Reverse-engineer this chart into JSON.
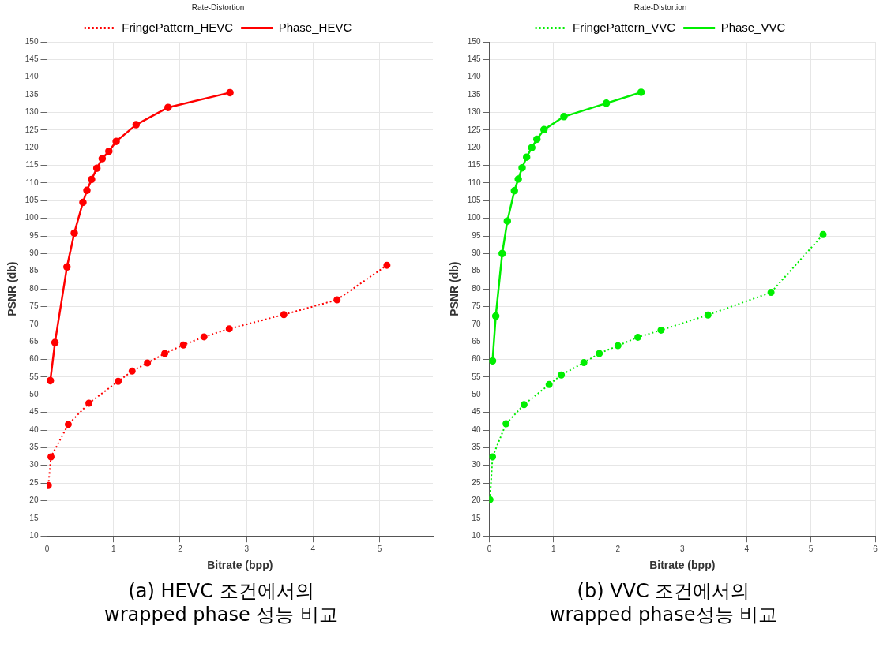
{
  "chart_data": [
    {
      "type": "line",
      "title": "Rate-Distortion",
      "xlabel": "Bitrate (bpp)",
      "ylabel": "PSNR (db)",
      "xlim": [
        0,
        5.8
      ],
      "xticks": [
        0,
        1,
        2,
        3,
        4,
        5
      ],
      "ylim": [
        10,
        150
      ],
      "yticks": [
        10,
        15,
        20,
        25,
        30,
        35,
        40,
        45,
        50,
        55,
        60,
        65,
        70,
        75,
        80,
        85,
        90,
        95,
        100,
        105,
        110,
        115,
        120,
        125,
        130,
        135,
        140,
        145,
        150
      ],
      "grid": true,
      "legend": "top",
      "marker": "circle",
      "series": [
        {
          "name": "FringePattern_HEVC",
          "color": "#ff0000",
          "line_style": "dotted",
          "x": [
            0.02,
            0.06,
            0.32,
            0.63,
            1.07,
            1.28,
            1.51,
            1.77,
            2.05,
            2.36,
            2.74,
            3.56,
            4.36,
            5.11
          ],
          "values": [
            24.3,
            32.4,
            41.6,
            47.6,
            53.8,
            56.7,
            59.0,
            61.7,
            64.1,
            66.4,
            68.7,
            72.7,
            76.9,
            86.7
          ]
        },
        {
          "name": "Phase_HEVC",
          "color": "#ff0000",
          "line_style": "solid",
          "x": [
            0.05,
            0.12,
            0.3,
            0.41,
            0.54,
            0.6,
            0.67,
            0.75,
            0.83,
            0.93,
            1.04,
            1.34,
            1.82,
            2.75
          ],
          "values": [
            54.0,
            64.8,
            86.2,
            95.8,
            104.5,
            107.9,
            111.0,
            114.2,
            116.9,
            119.0,
            121.8,
            126.5,
            131.4,
            135.6
          ]
        }
      ],
      "annotations": [
        "(a)  HEVC 조건에서의\nwrapped phase 성능 비교"
      ]
    },
    {
      "type": "line",
      "title": "Rate-Distortion",
      "xlabel": "Bitrate (bpp)",
      "ylabel": "PSNR (db)",
      "xlim": [
        0,
        6
      ],
      "xticks": [
        0,
        1,
        2,
        3,
        4,
        5,
        6
      ],
      "ylim": [
        10,
        150
      ],
      "yticks": [
        10,
        15,
        20,
        25,
        30,
        35,
        40,
        45,
        50,
        55,
        60,
        65,
        70,
        75,
        80,
        85,
        90,
        95,
        100,
        105,
        110,
        115,
        120,
        125,
        130,
        135,
        140,
        145,
        150
      ],
      "grid": true,
      "legend": "top",
      "marker": "circle",
      "series": [
        {
          "name": "FringePattern_VVC",
          "color": "#00ee00",
          "line_style": "dotted",
          "x": [
            0.01,
            0.05,
            0.26,
            0.54,
            0.93,
            1.12,
            1.47,
            1.71,
            2.0,
            2.31,
            2.67,
            3.4,
            4.38,
            5.19
          ],
          "values": [
            20.3,
            32.4,
            41.8,
            47.2,
            52.9,
            55.6,
            59.1,
            61.7,
            63.9,
            66.3,
            68.3,
            72.6,
            79.0,
            95.4
          ]
        },
        {
          "name": "Phase_VVC",
          "color": "#00ee00",
          "line_style": "solid",
          "x": [
            0.05,
            0.1,
            0.2,
            0.28,
            0.39,
            0.45,
            0.51,
            0.58,
            0.66,
            0.74,
            0.85,
            1.16,
            1.82,
            2.36
          ],
          "values": [
            59.6,
            72.3,
            90.0,
            99.2,
            107.8,
            111.1,
            114.3,
            117.3,
            120.0,
            122.4,
            125.1,
            128.8,
            132.6,
            135.7
          ]
        }
      ],
      "annotations": [
        "(b) VVC 조건에서의\nwrapped phase성능 비교"
      ]
    }
  ]
}
